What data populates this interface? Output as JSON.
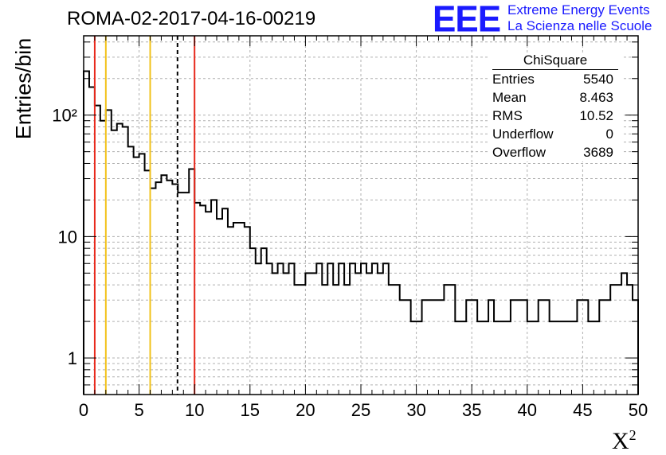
{
  "header": {
    "title": "ROMA-02-2017-04-16-00219",
    "logo_text": "EEE",
    "logo_line1": "Extreme Energy Events",
    "logo_line2": "La Scienza nelle Scuole"
  },
  "stats_box": {
    "title": "ChiSquare",
    "rows": [
      {
        "label": "Entries",
        "value": "5540"
      },
      {
        "label": "Mean",
        "value": "8.463"
      },
      {
        "label": "RMS",
        "value": "10.52"
      },
      {
        "label": "Underflow",
        "value": "0"
      },
      {
        "label": "Overflow",
        "value": "3689"
      }
    ]
  },
  "colors": {
    "histogram": "#000000",
    "grid": "#b0b0b0",
    "red_line": "#e8291c",
    "yellow_line": "#f2c21b",
    "dashed_line": "#000000",
    "logo": "#1a1aff"
  },
  "chart_data": {
    "type": "histogram",
    "xlabel": "X",
    "xlabel_sup": "2",
    "ylabel": "Entries/bin",
    "xlim": [
      0,
      50
    ],
    "ylim": [
      0.5,
      450
    ],
    "yscale": "log",
    "grid": true,
    "bin_width": 0.5,
    "values": [
      230,
      170,
      120,
      90,
      110,
      75,
      85,
      80,
      55,
      45,
      48,
      35,
      25,
      28,
      32,
      29,
      27,
      23,
      23,
      36,
      19,
      18,
      16,
      20,
      14,
      17,
      12,
      13,
      13,
      12,
      8,
      6,
      8,
      6,
      5,
      6,
      5,
      6,
      4,
      4,
      5,
      5,
      6,
      4,
      6,
      4,
      6,
      4,
      6,
      5,
      6,
      5,
      6,
      5,
      6,
      4,
      4,
      3,
      3,
      2,
      2,
      3,
      3,
      3,
      3,
      4,
      4,
      2,
      2,
      3,
      3,
      2,
      2,
      3,
      2,
      2,
      2,
      3,
      3,
      3,
      2,
      2,
      3,
      3,
      2,
      2,
      2,
      2,
      2,
      3,
      3,
      2,
      2,
      3,
      3,
      4,
      4,
      5,
      4,
      3
    ],
    "x_ticks": [
      0,
      5,
      10,
      15,
      20,
      25,
      30,
      35,
      40,
      45,
      50
    ],
    "x_tick_labels": [
      "0",
      "5",
      "10",
      "15",
      "20",
      "25",
      "30",
      "35",
      "40",
      "45",
      "50"
    ],
    "y_ticks": [
      1,
      10,
      100
    ],
    "y_tick_labels": [
      "1",
      "10",
      "10²"
    ],
    "vertical_lines": [
      {
        "x": 1,
        "color": "red",
        "style": "solid"
      },
      {
        "x": 2,
        "color": "yellow",
        "style": "solid"
      },
      {
        "x": 6,
        "color": "yellow",
        "style": "solid"
      },
      {
        "x": 8.463,
        "color": "black",
        "style": "dashed"
      },
      {
        "x": 10,
        "color": "red",
        "style": "solid"
      }
    ]
  }
}
